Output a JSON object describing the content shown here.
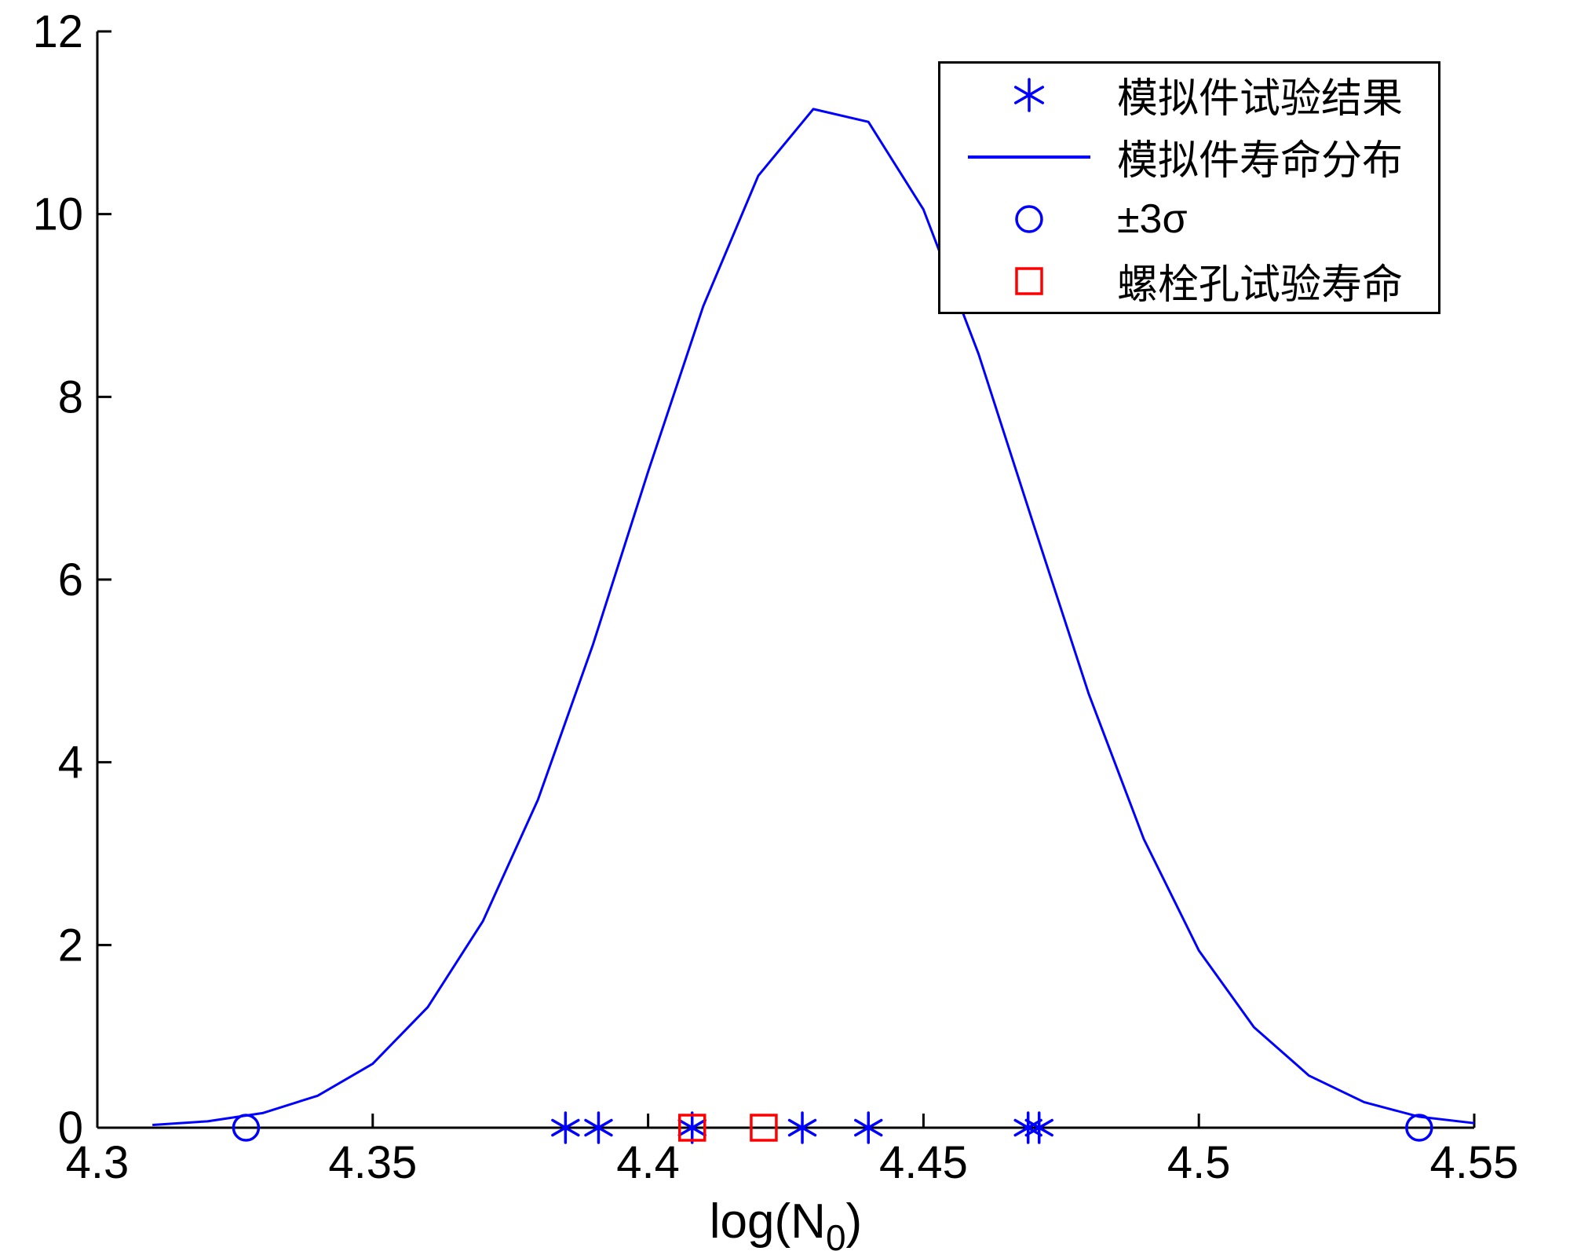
{
  "figure": {
    "background_color": "#ffffff",
    "axis_color": "#000000",
    "line_color": "#0000ff",
    "square_color": "#ff0000"
  },
  "chart_data": {
    "type": "line",
    "title": "",
    "xlabel": "log(N_0)",
    "xlabel_parts": {
      "main": "log(N",
      "sub": "0",
      "end": ")"
    },
    "ylabel": "",
    "xlim": [
      4.3,
      4.55
    ],
    "ylim": [
      0,
      12
    ],
    "x_ticks": [
      "4.3",
      "4.35",
      "4.4",
      "4.45",
      "4.5",
      "4.55"
    ],
    "x_tick_values": [
      4.3,
      4.35,
      4.4,
      4.45,
      4.5,
      4.55
    ],
    "y_ticks": [
      "0",
      "2",
      "4",
      "6",
      "8",
      "10",
      "12"
    ],
    "y_tick_values": [
      0,
      2,
      4,
      6,
      8,
      10,
      12
    ],
    "grid": false,
    "legend_position": "top-right",
    "series": [
      {
        "name": "模拟件试验结果",
        "type": "scatter",
        "marker": "asterisk",
        "color": "#0000ff",
        "x": [
          4.385,
          4.391,
          4.408,
          4.428,
          4.44,
          4.469,
          4.471
        ],
        "y": [
          0,
          0,
          0,
          0,
          0,
          0,
          0
        ]
      },
      {
        "name": "模拟件寿命分布",
        "type": "line",
        "color": "#0000ff",
        "points": [
          [
            4.31,
            0.03
          ],
          [
            4.32,
            0.07
          ],
          [
            4.33,
            0.16
          ],
          [
            4.34,
            0.35
          ],
          [
            4.35,
            0.7
          ],
          [
            4.36,
            1.32
          ],
          [
            4.37,
            2.26
          ],
          [
            4.38,
            3.59
          ],
          [
            4.39,
            5.29
          ],
          [
            4.4,
            7.18
          ],
          [
            4.41,
            8.99
          ],
          [
            4.42,
            10.42
          ],
          [
            4.43,
            11.15
          ],
          [
            4.44,
            11.01
          ],
          [
            4.45,
            10.05
          ],
          [
            4.46,
            8.47
          ],
          [
            4.47,
            6.6
          ],
          [
            4.48,
            4.75
          ],
          [
            4.49,
            3.16
          ],
          [
            4.5,
            1.94
          ],
          [
            4.51,
            1.1
          ],
          [
            4.52,
            0.57
          ],
          [
            4.53,
            0.28
          ],
          [
            4.54,
            0.12
          ],
          [
            4.55,
            0.05
          ]
        ]
      },
      {
        "name": "±3σ",
        "type": "scatter",
        "marker": "circle",
        "color": "#0000ff",
        "x": [
          4.327,
          4.54
        ],
        "y": [
          0,
          0
        ]
      },
      {
        "name": "螺栓孔试验寿命",
        "type": "scatter",
        "marker": "square",
        "color": "#ff0000",
        "x": [
          4.408,
          4.421
        ],
        "y": [
          0,
          0
        ]
      }
    ]
  }
}
